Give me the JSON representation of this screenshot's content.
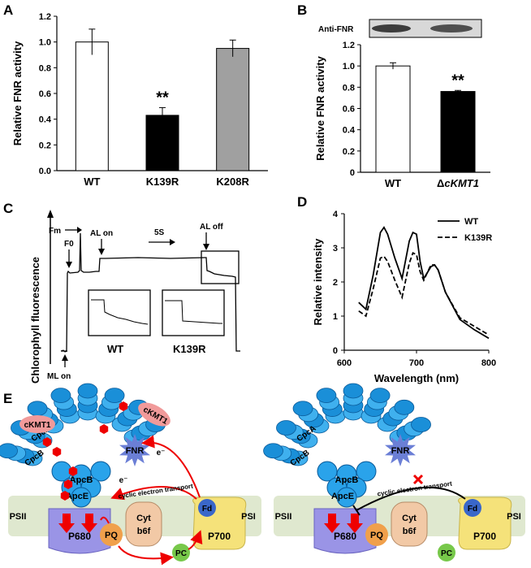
{
  "panels": {
    "a": "A",
    "b": "B",
    "c": "C",
    "d": "D",
    "e": "E"
  },
  "chart_data": [
    {
      "type": "bar",
      "categories": [
        "WT",
        "K139R",
        "K208R"
      ],
      "values": [
        1.0,
        0.43,
        0.95
      ],
      "errors": [
        0.1,
        0.06,
        0.065
      ],
      "colors": [
        "#ffffff",
        "#000000",
        "#a0a0a0"
      ],
      "significance": [
        "",
        "**",
        ""
      ],
      "ylabel": "Relative FNR activity",
      "ylim": [
        0,
        1.2
      ],
      "yticks": [
        "0.0",
        "0.2",
        "0.4",
        "0.6",
        "0.8",
        "1.0",
        "1.2"
      ]
    },
    {
      "type": "bar",
      "categories": [
        "WT",
        "ΔcKMT1"
      ],
      "values": [
        1.0,
        0.76
      ],
      "errors": [
        0.03,
        0.01
      ],
      "colors": [
        "#ffffff",
        "#000000"
      ],
      "significance": [
        "",
        "**"
      ],
      "ylabel": "Relative FNR activity",
      "ylim": [
        0,
        1.2
      ],
      "yticks": [
        "0",
        "0.2",
        "0.4",
        "0.6",
        "0.8",
        "1.0",
        "1.2"
      ],
      "blot_label": "Anti-FNR"
    },
    {
      "type": "line",
      "ylabel": "Chlorophyll fluorescence",
      "annotations": {
        "fm": "Fm",
        "f0": "F0",
        "al_on": "AL on",
        "time": "5S",
        "al_off": "AL off",
        "ml_on": "ML on"
      },
      "insets": [
        "WT",
        "K139R"
      ]
    },
    {
      "type": "line",
      "xlabel": "Wavelength (nm)",
      "ylabel": "Relative intensity",
      "xlim": [
        600,
        800
      ],
      "ylim": [
        0,
        4
      ],
      "xticks": [
        "600",
        "700",
        "800"
      ],
      "yticks": [
        "0",
        "1",
        "2",
        "3",
        "4"
      ],
      "series": [
        {
          "name": "WT",
          "style": "solid",
          "x": [
            620,
            630,
            640,
            650,
            655,
            660,
            670,
            680,
            690,
            695,
            700,
            705,
            710,
            720,
            725,
            730,
            740,
            760,
            780,
            800
          ],
          "y": [
            1.4,
            1.2,
            2.2,
            3.45,
            3.6,
            3.4,
            2.7,
            2.1,
            3.2,
            3.45,
            3.4,
            2.6,
            2.1,
            2.45,
            2.5,
            2.35,
            1.7,
            0.9,
            0.6,
            0.35
          ]
        },
        {
          "name": "K139R",
          "style": "dashed",
          "x": [
            620,
            630,
            640,
            650,
            655,
            660,
            670,
            680,
            690,
            695,
            700,
            705,
            710,
            720,
            725,
            730,
            740,
            760,
            780,
            800
          ],
          "y": [
            1.15,
            1.0,
            1.8,
            2.7,
            2.75,
            2.6,
            2.05,
            1.55,
            2.55,
            2.85,
            2.8,
            2.3,
            2.05,
            2.5,
            2.5,
            2.35,
            1.7,
            0.95,
            0.7,
            0.45
          ]
        }
      ]
    }
  ],
  "diagram": {
    "labels": {
      "ckmt1": "cKMT1",
      "cpca": "CpcA",
      "cpcb": "CpcB",
      "apcb": "ApcB",
      "apce": "ApcE",
      "fnr": "FNR",
      "fd": "Fd",
      "psii": "PSII",
      "psi": "PSI",
      "p680": "P680",
      "p700": "P700",
      "pq": "PQ",
      "cyt": "Cyt",
      "b6f": "b6f",
      "pc": "PC",
      "cet": "cyclic electron transport",
      "e": "e⁻"
    }
  }
}
